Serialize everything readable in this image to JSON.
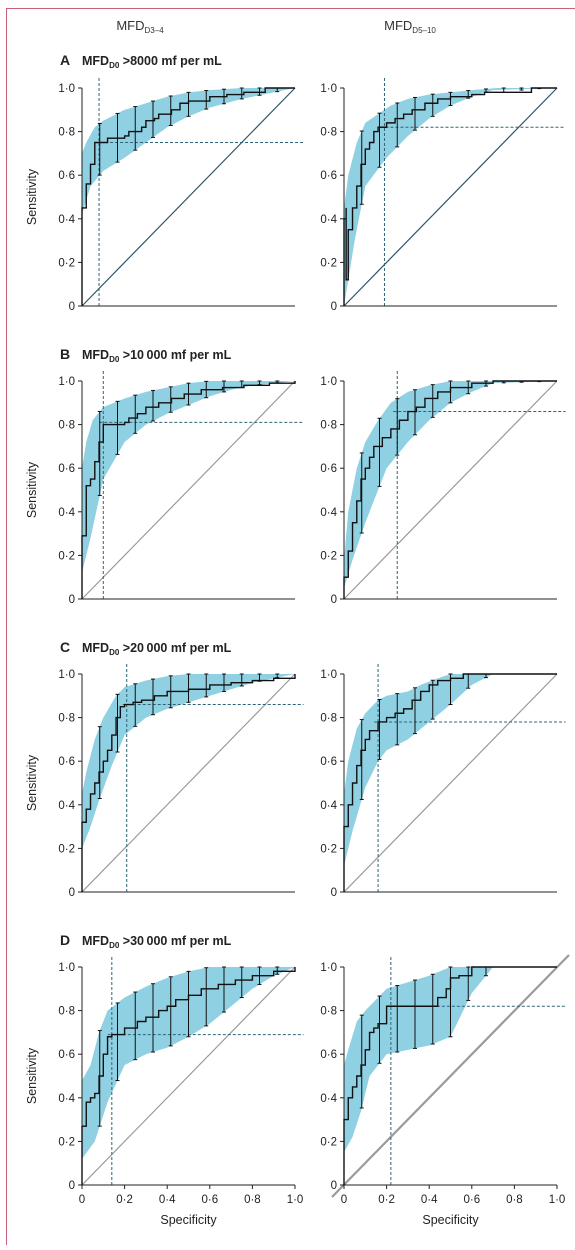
{
  "figure": {
    "column_titles": [
      {
        "base": "MFD",
        "sub": "D3–4"
      },
      {
        "base": "MFD",
        "sub": "D5–10"
      }
    ],
    "panels": [
      {
        "letter": "A",
        "title_base": "MFD",
        "title_sub": "D0",
        "title_rest": " >8000 mf per mL"
      },
      {
        "letter": "B",
        "title_base": "MFD",
        "title_sub": "D0",
        "title_rest": " >10 000 mf per mL"
      },
      {
        "letter": "C",
        "title_base": "MFD",
        "title_sub": "D0",
        "title_rest": " >20 000 mf per mL"
      },
      {
        "letter": "D",
        "title_base": "MFD",
        "title_sub": "D0",
        "title_rest": " >30 000 mf per mL"
      }
    ],
    "y_tick_labels": [
      "0",
      "0·2",
      "0·4",
      "0·6",
      "0·8",
      "1·0"
    ],
    "x_tick_labels": [
      "0",
      "0·2",
      "0·4",
      "0·6",
      "0·8",
      "1·0"
    ],
    "colors": {
      "band": "#8fd0e3",
      "curve": "#111111",
      "reference": "#2f5468",
      "guide": "#2f6478",
      "axis": "#222222",
      "border": "#c8607a"
    }
  },
  "chart_data": [
    {
      "type": "line",
      "panel": "A",
      "column": "MFD D3–4",
      "xlabel": "",
      "ylabel": "Sensitivity",
      "xlim": [
        0,
        1
      ],
      "ylim": [
        0,
        1
      ],
      "roc_curve": {
        "x": [
          0,
          0,
          0.02,
          0.02,
          0.04,
          0.04,
          0.06,
          0.06,
          0.1,
          0.12,
          0.2,
          0.22,
          0.28,
          0.3,
          0.34,
          0.36,
          0.42,
          0.46,
          0.5,
          0.6,
          0.68,
          0.76,
          0.82,
          0.86,
          1.0
        ],
        "y": [
          0,
          0.45,
          0.5,
          0.56,
          0.6,
          0.65,
          0.68,
          0.75,
          0.75,
          0.77,
          0.78,
          0.8,
          0.82,
          0.85,
          0.86,
          0.88,
          0.9,
          0.93,
          0.94,
          0.96,
          0.97,
          0.98,
          0.98,
          1.0,
          1.0
        ]
      },
      "ci_lower": {
        "x": [
          0,
          0.04,
          0.1,
          0.2,
          0.3,
          0.4,
          0.5,
          0.6,
          0.75,
          1.0
        ],
        "y": [
          0.42,
          0.55,
          0.62,
          0.68,
          0.75,
          0.82,
          0.87,
          0.91,
          0.95,
          1.0
        ]
      },
      "ci_upper": {
        "x": [
          0,
          0.02,
          0.06,
          0.1,
          0.2,
          0.3,
          0.4,
          0.5,
          0.6,
          0.75,
          1.0
        ],
        "y": [
          0.7,
          0.75,
          0.82,
          0.85,
          0.9,
          0.93,
          0.96,
          0.98,
          0.99,
          1.0,
          1.0
        ]
      },
      "optimal_point": {
        "x": 0.08,
        "y": 0.75
      },
      "reference_line": true
    },
    {
      "type": "line",
      "panel": "A",
      "column": "MFD D5–10",
      "xlabel": "",
      "ylabel": "",
      "xlim": [
        0,
        1
      ],
      "ylim": [
        0,
        1
      ],
      "roc_curve": {
        "x": [
          0,
          0,
          0.01,
          0.01,
          0.02,
          0.02,
          0.04,
          0.06,
          0.08,
          0.1,
          0.12,
          0.14,
          0.16,
          0.2,
          0.24,
          0.28,
          0.32,
          0.38,
          0.44,
          0.5,
          0.6,
          0.66,
          0.78,
          0.88,
          1.0
        ],
        "y": [
          0,
          0.4,
          0.45,
          0.12,
          0.18,
          0.35,
          0.45,
          0.55,
          0.65,
          0.72,
          0.75,
          0.8,
          0.82,
          0.84,
          0.86,
          0.88,
          0.9,
          0.93,
          0.95,
          0.96,
          0.97,
          0.98,
          0.98,
          1.0,
          1.0
        ]
      },
      "ci_lower": {
        "x": [
          0,
          0.05,
          0.1,
          0.2,
          0.3,
          0.4,
          0.5,
          0.6,
          0.7,
          1.0
        ],
        "y": [
          0,
          0.3,
          0.55,
          0.68,
          0.78,
          0.86,
          0.92,
          0.96,
          0.99,
          1.0
        ]
      },
      "ci_upper": {
        "x": [
          0,
          0.02,
          0.06,
          0.1,
          0.16,
          0.22,
          0.3,
          0.4,
          0.5,
          0.6,
          0.72,
          1.0
        ],
        "y": [
          0.45,
          0.6,
          0.75,
          0.84,
          0.88,
          0.92,
          0.95,
          0.97,
          0.98,
          0.99,
          1.0,
          1.0
        ]
      },
      "optimal_point": {
        "x": 0.19,
        "y": 0.82
      },
      "reference_line": true
    },
    {
      "type": "line",
      "panel": "B",
      "column": "MFD D3–4",
      "xlabel": "",
      "ylabel": "Sensitivity",
      "xlim": [
        0,
        1
      ],
      "ylim": [
        0,
        1
      ],
      "roc_curve": {
        "x": [
          0,
          0,
          0.02,
          0.04,
          0.06,
          0.08,
          0.1,
          0.1,
          0.2,
          0.22,
          0.26,
          0.3,
          0.36,
          0.42,
          0.48,
          0.56,
          0.66,
          0.76,
          0.88,
          1.0
        ],
        "y": [
          0,
          0.29,
          0.52,
          0.55,
          0.63,
          0.72,
          0.8,
          0.8,
          0.81,
          0.83,
          0.85,
          0.88,
          0.9,
          0.92,
          0.94,
          0.96,
          0.97,
          0.98,
          0.99,
          1.0
        ]
      },
      "ci_lower": {
        "x": [
          0,
          0.04,
          0.1,
          0.2,
          0.3,
          0.4,
          0.5,
          0.6,
          0.7,
          0.8,
          1.0
        ],
        "y": [
          0.12,
          0.28,
          0.55,
          0.72,
          0.8,
          0.85,
          0.89,
          0.93,
          0.96,
          0.98,
          1.0
        ]
      },
      "ci_upper": {
        "x": [
          0,
          0.02,
          0.05,
          0.1,
          0.2,
          0.3,
          0.4,
          0.5,
          0.6,
          0.7,
          0.8,
          1.0
        ],
        "y": [
          0.6,
          0.72,
          0.82,
          0.88,
          0.92,
          0.95,
          0.97,
          0.99,
          1.0,
          1.0,
          1.0,
          1.0
        ]
      },
      "optimal_point": {
        "x": 0.1,
        "y": 0.81
      },
      "reference_line": true
    },
    {
      "type": "line",
      "panel": "B",
      "column": "MFD D5–10",
      "xlabel": "",
      "ylabel": "",
      "xlim": [
        0,
        1
      ],
      "ylim": [
        0,
        1
      ],
      "roc_curve": {
        "x": [
          0,
          0,
          0.02,
          0.04,
          0.06,
          0.08,
          0.1,
          0.12,
          0.14,
          0.18,
          0.22,
          0.26,
          0.3,
          0.34,
          0.38,
          0.44,
          0.5,
          0.6,
          0.7,
          0.8,
          1.0
        ],
        "y": [
          0,
          0.1,
          0.22,
          0.35,
          0.45,
          0.55,
          0.6,
          0.65,
          0.7,
          0.74,
          0.78,
          0.82,
          0.86,
          0.88,
          0.92,
          0.95,
          0.97,
          0.99,
          1.0,
          1.0,
          1.0
        ]
      },
      "ci_lower": {
        "x": [
          0,
          0.04,
          0.1,
          0.16,
          0.2,
          0.3,
          0.4,
          0.5,
          0.6,
          0.7,
          1.0
        ],
        "y": [
          0.05,
          0.18,
          0.35,
          0.5,
          0.6,
          0.72,
          0.82,
          0.9,
          0.95,
          0.99,
          1.0
        ]
      },
      "ci_upper": {
        "x": [
          0,
          0.02,
          0.06,
          0.1,
          0.16,
          0.22,
          0.3,
          0.4,
          0.5,
          0.6,
          1.0
        ],
        "y": [
          0.18,
          0.4,
          0.6,
          0.72,
          0.82,
          0.9,
          0.95,
          0.98,
          1.0,
          1.0,
          1.0
        ]
      },
      "optimal_point": {
        "x": 0.25,
        "y": 0.86
      },
      "reference_line": true
    },
    {
      "type": "line",
      "panel": "C",
      "column": "MFD D3–4",
      "xlabel": "",
      "ylabel": "Sensitivity",
      "xlim": [
        0,
        1
      ],
      "ylim": [
        0,
        1
      ],
      "roc_curve": {
        "x": [
          0,
          0,
          0.02,
          0.04,
          0.06,
          0.08,
          0.1,
          0.12,
          0.14,
          0.16,
          0.18,
          0.2,
          0.24,
          0.28,
          0.34,
          0.4,
          0.5,
          0.6,
          0.7,
          0.8,
          0.9,
          1.0
        ],
        "y": [
          0,
          0.32,
          0.38,
          0.45,
          0.5,
          0.55,
          0.6,
          0.65,
          0.72,
          0.8,
          0.85,
          0.86,
          0.87,
          0.88,
          0.9,
          0.92,
          0.93,
          0.95,
          0.96,
          0.97,
          0.98,
          1.0
        ]
      },
      "ci_lower": {
        "x": [
          0,
          0.04,
          0.08,
          0.14,
          0.2,
          0.3,
          0.4,
          0.5,
          0.6,
          0.7,
          0.8,
          1.0
        ],
        "y": [
          0.2,
          0.3,
          0.42,
          0.58,
          0.72,
          0.8,
          0.84,
          0.87,
          0.9,
          0.93,
          0.96,
          1.0
        ]
      },
      "ci_upper": {
        "x": [
          0,
          0.02,
          0.06,
          0.1,
          0.16,
          0.2,
          0.3,
          0.4,
          0.5,
          0.6,
          0.7,
          1.0
        ],
        "y": [
          0.45,
          0.55,
          0.7,
          0.8,
          0.9,
          0.94,
          0.97,
          0.99,
          1.0,
          1.0,
          1.0,
          1.0
        ]
      },
      "optimal_point": {
        "x": 0.21,
        "y": 0.86
      },
      "reference_line": true
    },
    {
      "type": "line",
      "panel": "C",
      "column": "MFD D5–10",
      "xlabel": "",
      "ylabel": "",
      "xlim": [
        0,
        1
      ],
      "ylim": [
        0,
        1
      ],
      "roc_curve": {
        "x": [
          0,
          0,
          0.02,
          0.04,
          0.06,
          0.08,
          0.1,
          0.12,
          0.16,
          0.2,
          0.24,
          0.28,
          0.32,
          0.36,
          0.4,
          0.44,
          0.5,
          0.56,
          0.6,
          0.7,
          1.0
        ],
        "y": [
          0,
          0.3,
          0.4,
          0.5,
          0.58,
          0.65,
          0.7,
          0.74,
          0.78,
          0.8,
          0.82,
          0.84,
          0.88,
          0.92,
          0.95,
          0.97,
          0.98,
          1.0,
          1.0,
          1.0,
          1.0
        ]
      },
      "ci_lower": {
        "x": [
          0,
          0.04,
          0.1,
          0.16,
          0.2,
          0.3,
          0.4,
          0.5,
          0.6,
          0.7,
          1.0
        ],
        "y": [
          0.12,
          0.28,
          0.48,
          0.6,
          0.65,
          0.7,
          0.78,
          0.86,
          0.95,
          1.0,
          1.0
        ]
      },
      "ci_upper": {
        "x": [
          0,
          0.02,
          0.06,
          0.1,
          0.16,
          0.2,
          0.3,
          0.36,
          0.44,
          0.5,
          0.6,
          1.0
        ],
        "y": [
          0.45,
          0.6,
          0.75,
          0.82,
          0.88,
          0.9,
          0.92,
          0.95,
          0.98,
          1.0,
          1.0,
          1.0
        ]
      },
      "optimal_point": {
        "x": 0.16,
        "y": 0.78
      },
      "reference_line": true
    },
    {
      "type": "line",
      "panel": "D",
      "column": "MFD D3–4",
      "xlabel": "Specificity",
      "ylabel": "Sensitivity",
      "xlim": [
        0,
        1
      ],
      "ylim": [
        0,
        1
      ],
      "roc_curve": {
        "x": [
          0,
          0,
          0.02,
          0.04,
          0.06,
          0.08,
          0.1,
          0.12,
          0.14,
          0.2,
          0.26,
          0.3,
          0.36,
          0.4,
          0.44,
          0.5,
          0.56,
          0.64,
          0.72,
          0.8,
          0.9,
          1.0
        ],
        "y": [
          0,
          0.27,
          0.38,
          0.4,
          0.42,
          0.5,
          0.6,
          0.68,
          0.69,
          0.72,
          0.75,
          0.77,
          0.8,
          0.82,
          0.85,
          0.87,
          0.9,
          0.92,
          0.94,
          0.96,
          0.98,
          1.0
        ]
      },
      "ci_lower": {
        "x": [
          0,
          0.06,
          0.12,
          0.2,
          0.3,
          0.4,
          0.5,
          0.6,
          0.7,
          0.8,
          0.9,
          1.0
        ],
        "y": [
          0.12,
          0.2,
          0.38,
          0.55,
          0.6,
          0.63,
          0.68,
          0.74,
          0.82,
          0.9,
          0.96,
          1.0
        ]
      },
      "ci_upper": {
        "x": [
          0,
          0.04,
          0.08,
          0.12,
          0.2,
          0.3,
          0.4,
          0.5,
          0.6,
          0.7,
          0.8,
          1.0
        ],
        "y": [
          0.48,
          0.55,
          0.7,
          0.8,
          0.86,
          0.91,
          0.95,
          0.98,
          1.0,
          1.0,
          1.0,
          1.0
        ]
      },
      "optimal_point": {
        "x": 0.14,
        "y": 0.69
      },
      "reference_line": true
    },
    {
      "type": "line",
      "panel": "D",
      "column": "MFD D5–10",
      "xlabel": "Specificity",
      "ylabel": "",
      "xlim": [
        0,
        1
      ],
      "ylim": [
        0,
        1
      ],
      "roc_curve": {
        "x": [
          0,
          0,
          0.02,
          0.04,
          0.06,
          0.08,
          0.1,
          0.12,
          0.14,
          0.16,
          0.2,
          0.3,
          0.4,
          0.44,
          0.48,
          0.5,
          0.54,
          0.6,
          0.7,
          0.8,
          1.0
        ],
        "y": [
          0,
          0.3,
          0.4,
          0.45,
          0.5,
          0.55,
          0.62,
          0.7,
          0.72,
          0.74,
          0.82,
          0.82,
          0.82,
          0.86,
          0.9,
          0.95,
          0.96,
          1.0,
          1.0,
          1.0,
          1.0
        ]
      },
      "ci_lower": {
        "x": [
          0,
          0.04,
          0.08,
          0.12,
          0.2,
          0.3,
          0.4,
          0.5,
          0.6,
          0.7,
          1.0
        ],
        "y": [
          0.15,
          0.22,
          0.34,
          0.5,
          0.6,
          0.62,
          0.64,
          0.68,
          0.88,
          1.0,
          1.0
        ]
      },
      "ci_upper": {
        "x": [
          0,
          0.02,
          0.06,
          0.1,
          0.16,
          0.2,
          0.3,
          0.4,
          0.5,
          0.56,
          0.6,
          1.0
        ],
        "y": [
          0.55,
          0.62,
          0.75,
          0.8,
          0.86,
          0.9,
          0.93,
          0.96,
          1.0,
          1.0,
          1.0,
          1.0
        ]
      },
      "optimal_point": {
        "x": 0.22,
        "y": 0.82
      },
      "reference_line": true
    }
  ]
}
